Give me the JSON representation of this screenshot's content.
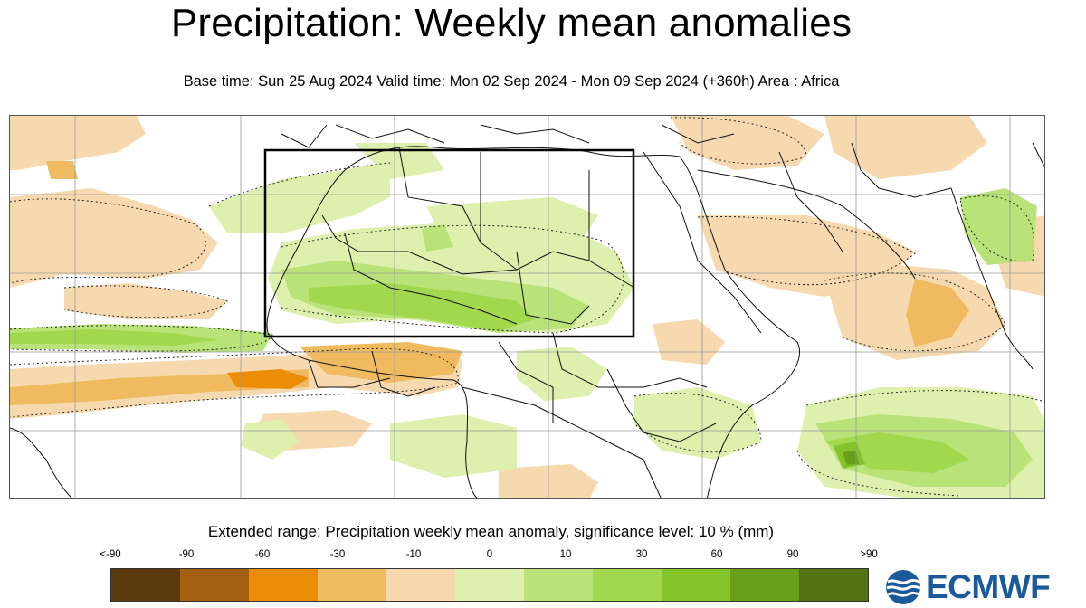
{
  "header": {
    "title": "Precipitation: Weekly mean anomalies",
    "subtitle": "Base time: Sun 25 Aug 2024 Valid time: Mon 02 Sep 2024 - Mon 09 Sep 2024 (+360h) Area : Africa"
  },
  "legend": {
    "title": "Extended range: Precipitation weekly mean anomaly, significance level: 10 % (mm)",
    "ticks": [
      "<-90",
      "-90",
      "-60",
      "-30",
      "-10",
      "0",
      "10",
      "30",
      "60",
      "90",
      ">90"
    ],
    "colors": [
      "#5a3a0c",
      "#a45f10",
      "#ec8d08",
      "#f0ba60",
      "#f6d9ae",
      "#ddf0ad",
      "#b9e378",
      "#a2d84e",
      "#84c42a",
      "#6aa019",
      "#547214"
    ]
  },
  "map": {
    "region": "Africa",
    "highlight_box": true
  },
  "logo": {
    "text": "ECMWF",
    "icon": "ecmwf-logo-icon",
    "color": "#1b5a9a"
  }
}
